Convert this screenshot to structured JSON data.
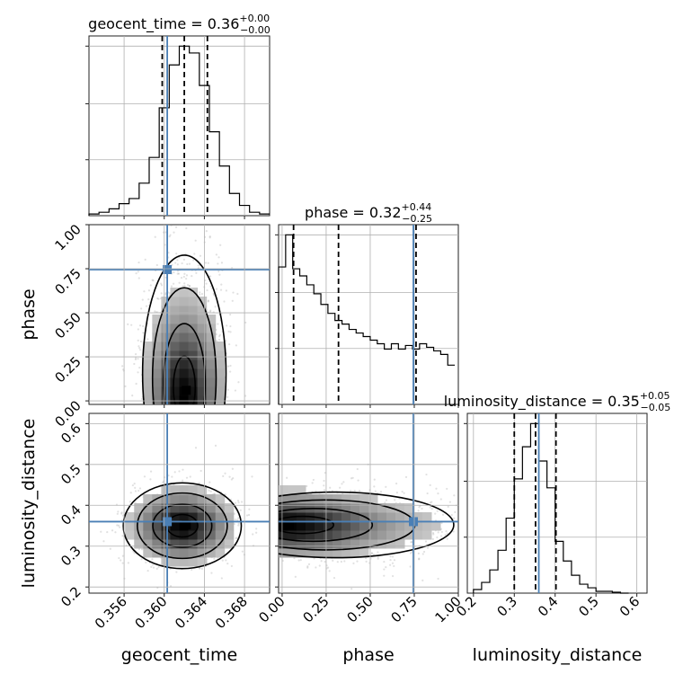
{
  "chart_data": {
    "type": "corner",
    "parameters": [
      "geocent_time",
      "phase",
      "luminosity_distance"
    ],
    "truths": {
      "geocent_time": 0.3603,
      "phase": 0.745,
      "luminosity_distance": 0.36
    },
    "titles": [
      {
        "param": "geocent_time",
        "text": "geocent_time = 0.36",
        "upper": "+0.00",
        "lower": "−0.00"
      },
      {
        "param": "phase",
        "text": "phase = 0.32",
        "upper": "+0.44",
        "lower": "−0.25"
      },
      {
        "param": "luminosity_distance",
        "text": "luminosity_distance = 0.35",
        "upper": "+0.05",
        "lower": "−0.05"
      }
    ],
    "ranges": {
      "geocent_time": [
        0.3525,
        0.3705
      ],
      "phase": [
        -0.02,
        1.0
      ],
      "luminosity_distance": [
        0.185,
        0.625
      ]
    },
    "ticks": {
      "geocent_time": {
        "values": [
          0.356,
          0.36,
          0.364,
          0.368
        ],
        "labels": [
          "0.356",
          "0.360",
          "0.364",
          "0.368"
        ]
      },
      "phase": {
        "values": [
          0.0,
          0.25,
          0.5,
          0.75,
          1.0
        ],
        "labels": [
          "0.00",
          "0.25",
          "0.50",
          "0.75",
          "1.00"
        ]
      },
      "luminosity_distance": {
        "values": [
          0.2,
          0.3,
          0.4,
          0.5,
          0.6
        ],
        "labels": [
          "0.2",
          "0.3",
          "0.4",
          "0.5",
          "0.6"
        ]
      }
    },
    "quantiles": {
      "geocent_time": [
        0.3598,
        0.362,
        0.3643
      ],
      "phase": [
        0.065,
        0.32,
        0.76
      ],
      "luminosity_distance": [
        0.3,
        0.352,
        0.402
      ]
    },
    "histograms": {
      "geocent_time": {
        "edges": [
          0.3525,
          0.3535,
          0.3545,
          0.3555,
          0.3565,
          0.3575,
          0.3585,
          0.3595,
          0.3605,
          0.3615,
          0.3625,
          0.3635,
          0.3645,
          0.3655,
          0.3665,
          0.3675,
          0.3685,
          0.3695,
          0.3705
        ],
        "counts": [
          0.01,
          0.02,
          0.04,
          0.07,
          0.1,
          0.19,
          0.34,
          0.63,
          0.88,
          0.99,
          0.95,
          0.76,
          0.49,
          0.29,
          0.13,
          0.06,
          0.02,
          0.01
        ]
      },
      "phase": {
        "edges": [
          -0.02,
          0.02,
          0.06,
          0.1,
          0.14,
          0.18,
          0.22,
          0.26,
          0.3,
          0.34,
          0.38,
          0.42,
          0.46,
          0.5,
          0.54,
          0.58,
          0.62,
          0.66,
          0.7,
          0.74,
          0.78,
          0.82,
          0.86,
          0.9,
          0.94,
          0.98
        ],
        "counts": [
          0.77,
          0.95,
          0.76,
          0.72,
          0.67,
          0.62,
          0.56,
          0.51,
          0.47,
          0.45,
          0.42,
          0.4,
          0.38,
          0.36,
          0.34,
          0.31,
          0.34,
          0.31,
          0.33,
          0.31,
          0.34,
          0.32,
          0.3,
          0.28,
          0.22
        ]
      },
      "luminosity_distance": {
        "edges": [
          0.2,
          0.22,
          0.24,
          0.26,
          0.28,
          0.3,
          0.32,
          0.34,
          0.36,
          0.38,
          0.4,
          0.42,
          0.44,
          0.46,
          0.48,
          0.5,
          0.52,
          0.54,
          0.56,
          0.58
        ],
        "counts": [
          0.02,
          0.06,
          0.13,
          0.24,
          0.42,
          0.64,
          0.82,
          0.95,
          0.74,
          0.59,
          0.29,
          0.18,
          0.1,
          0.05,
          0.03,
          0.01,
          0.01,
          0.005,
          0.0
        ]
      }
    },
    "samples_2d": [
      {
        "x": "geocent_time",
        "y": "phase",
        "center": [
          0.362,
          0.07
        ],
        "spread": [
          0.0022,
          0.42
        ]
      },
      {
        "x": "geocent_time",
        "y": "luminosity_distance",
        "center": [
          0.3618,
          0.35
        ],
        "spread": [
          0.0028,
          0.05
        ]
      },
      {
        "x": "phase",
        "y": "luminosity_distance",
        "center": [
          0.1,
          0.352
        ],
        "spread": [
          0.35,
          0.045
        ]
      }
    ],
    "truth_color": "#4a7fb5",
    "xlabel": [
      "geocent_time",
      "phase",
      "luminosity_distance"
    ],
    "ylabel": [
      "phase",
      "luminosity_distance"
    ]
  }
}
